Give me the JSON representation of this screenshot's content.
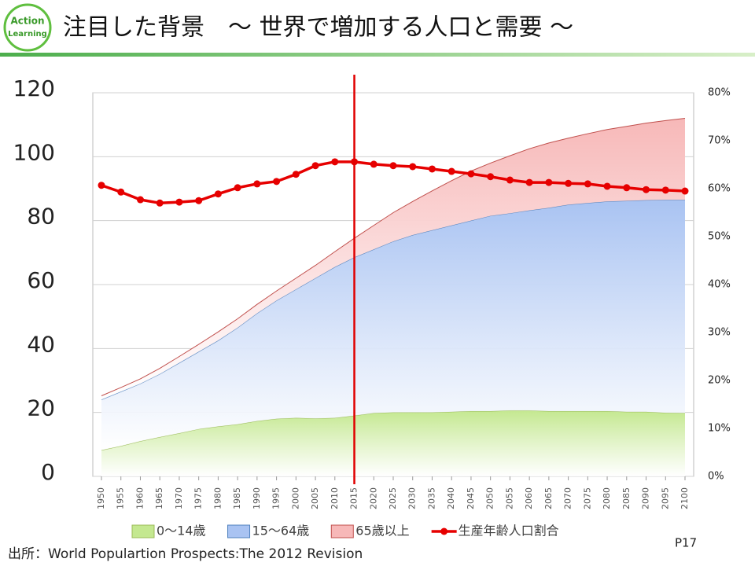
{
  "header": {
    "title": "注目した背景　～ 世界で増加する人口と需要 ～",
    "logo": [
      "Action",
      "Learning"
    ]
  },
  "chart_data": {
    "type": "stacked-area-line",
    "categories": [
      "1950",
      "1955",
      "1960",
      "1965",
      "1970",
      "1975",
      "1980",
      "1985",
      "1990",
      "1995",
      "2000",
      "2005",
      "2010",
      "2015",
      "2020",
      "2025",
      "2030",
      "2035",
      "2040",
      "2045",
      "2050",
      "2055",
      "2060",
      "2065",
      "2070",
      "2075",
      "2080",
      "2085",
      "2090",
      "2095",
      "2100"
    ],
    "series": [
      {
        "name": "0～14歳",
        "color": "#c4e890",
        "edge": "#9bbb59",
        "values": [
          8.2,
          9.5,
          11,
          12.3,
          13.5,
          14.8,
          15.6,
          16.3,
          17.3,
          18,
          18.3,
          18.1,
          18.3,
          19,
          19.8,
          20,
          20,
          20,
          20.2,
          20.4,
          20.4,
          20.6,
          20.6,
          20.4,
          20.4,
          20.4,
          20.4,
          20.2,
          20.2,
          19.9,
          19.8
        ]
      },
      {
        "name": "15～64歳",
        "color": "#a9c3f2",
        "edge": "#4f81bd",
        "values": [
          15.8,
          17,
          18,
          19.7,
          22,
          24.2,
          26.9,
          30.2,
          33.7,
          37,
          40.2,
          43.9,
          47.2,
          49.5,
          51.2,
          53.5,
          55.5,
          57,
          58.3,
          59.6,
          61.1,
          61.7,
          62.6,
          63.6,
          64.6,
          65.1,
          65.6,
          66,
          66.2,
          66.6,
          66.7
        ]
      },
      {
        "name": "65歳以上",
        "color": "#f7b8b8",
        "edge": "#c0504d",
        "values": [
          1.2,
          1.3,
          1.5,
          1.8,
          2,
          2.3,
          2.7,
          2.8,
          2.8,
          3,
          3.5,
          4,
          4.8,
          6,
          7.5,
          9,
          10.5,
          12.3,
          14,
          15.5,
          16.5,
          18,
          19.3,
          20.3,
          20.8,
          21.7,
          22.5,
          23.3,
          24.1,
          24.8,
          25.5
        ]
      },
      {
        "name": "生産年齢人口割合",
        "color": "#e60000",
        "axis": "y2",
        "values": [
          60.7,
          59.3,
          57.7,
          57,
          57.2,
          57.5,
          58.9,
          60.2,
          61,
          61.5,
          63,
          64.8,
          65.6,
          65.6,
          65.1,
          64.8,
          64.6,
          64.1,
          63.6,
          63.1,
          62.5,
          61.8,
          61.3,
          61.3,
          61.1,
          61,
          60.5,
          60.2,
          59.8,
          59.7,
          59.5
        ]
      }
    ],
    "ylim": [
      0,
      120
    ],
    "yticks": [
      0,
      20,
      40,
      60,
      80,
      100,
      120
    ],
    "y2lim": [
      0,
      80
    ],
    "y2ticks": [
      {
        "value": 0,
        "label": "0%"
      },
      {
        "value": 10,
        "label": "10%"
      },
      {
        "value": 20,
        "label": "20%"
      },
      {
        "value": 30,
        "label": "30%"
      },
      {
        "value": 40,
        "label": "40%"
      },
      {
        "value": 50,
        "label": "50%"
      },
      {
        "value": 60,
        "label": "60%"
      },
      {
        "value": 70,
        "label": "70%"
      },
      {
        "value": 80,
        "label": "80%"
      }
    ],
    "grid": true,
    "legend": "bottom",
    "vline": {
      "x": "2015",
      "color": "#e00000"
    }
  },
  "footer": {
    "source": "出所：World Populartion Prospects:The 2012 Revision",
    "page": "P17"
  }
}
